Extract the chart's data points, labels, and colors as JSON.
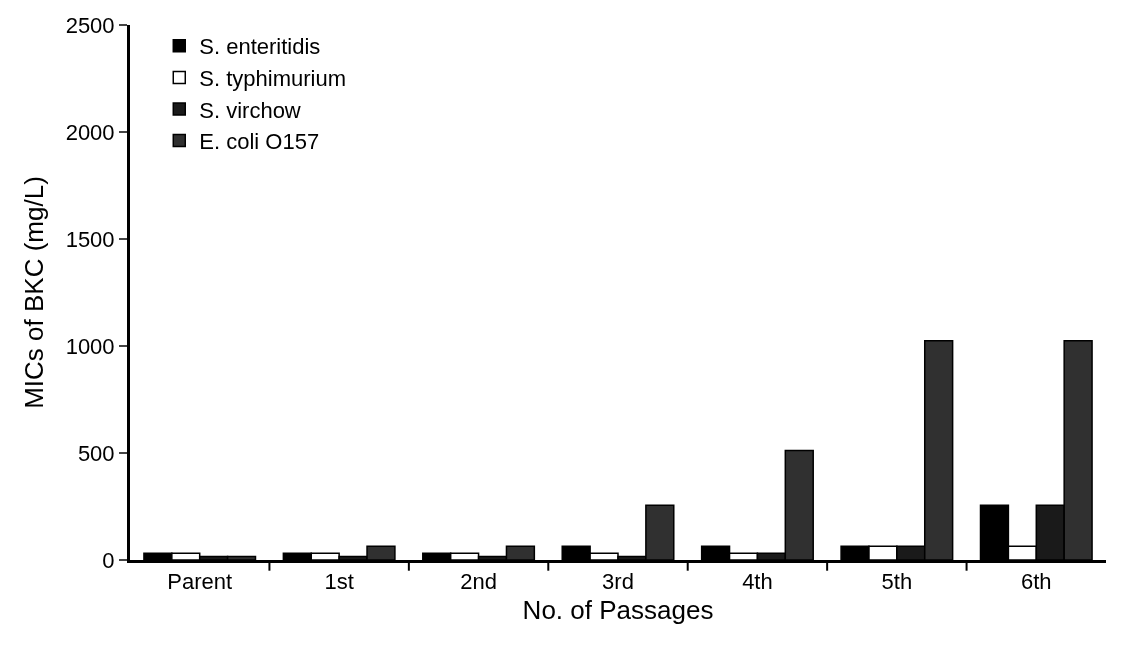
{
  "chart_data": {
    "type": "bar",
    "xlabel": "No. of Passages",
    "ylabel": "MICs of BKC (mg/L)",
    "categories": [
      "Parent",
      "1st",
      "2nd",
      "3rd",
      "4th",
      "5th",
      "6th"
    ],
    "series": [
      {
        "name": "S. enteritidis",
        "color": "#000000",
        "values": [
          32,
          32,
          32,
          64,
          64,
          64,
          256
        ]
      },
      {
        "name": "S. typhimurium",
        "color": "#ffffff",
        "values": [
          32,
          32,
          32,
          32,
          32,
          64,
          64
        ]
      },
      {
        "name": "S. virchow",
        "color": "#1a1a1a",
        "values": [
          16,
          16,
          16,
          16,
          32,
          64,
          256
        ]
      },
      {
        "name": "E. coli O157",
        "color": "#303030",
        "values": [
          16,
          64,
          64,
          256,
          512,
          1024,
          1024
        ]
      }
    ],
    "ylim": [
      0,
      2500
    ],
    "yticks": [
      0,
      500,
      1000,
      1500,
      2000,
      2500
    ],
    "legend": "top left"
  }
}
